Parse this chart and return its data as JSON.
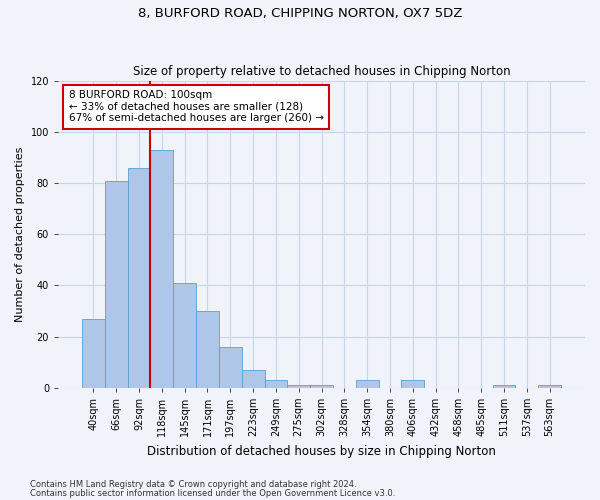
{
  "title": "8, BURFORD ROAD, CHIPPING NORTON, OX7 5DZ",
  "subtitle": "Size of property relative to detached houses in Chipping Norton",
  "xlabel": "Distribution of detached houses by size in Chipping Norton",
  "ylabel": "Number of detached properties",
  "categories": [
    "40sqm",
    "66sqm",
    "92sqm",
    "118sqm",
    "145sqm",
    "171sqm",
    "197sqm",
    "223sqm",
    "249sqm",
    "275sqm",
    "302sqm",
    "328sqm",
    "354sqm",
    "380sqm",
    "406sqm",
    "432sqm",
    "458sqm",
    "485sqm",
    "511sqm",
    "537sqm",
    "563sqm"
  ],
  "values": [
    27,
    81,
    86,
    93,
    41,
    30,
    16,
    7,
    3,
    1,
    1,
    0,
    3,
    0,
    3,
    0,
    0,
    0,
    1,
    0,
    1
  ],
  "bar_color": "#aec6e8",
  "bar_edge_color": "#5a9fd4",
  "vline_x_index": 2.5,
  "vline_color": "#cc0000",
  "ylim": [
    0,
    120
  ],
  "yticks": [
    0,
    20,
    40,
    60,
    80,
    100,
    120
  ],
  "annotation_text": "8 BURFORD ROAD: 100sqm\n← 33% of detached houses are smaller (128)\n67% of semi-detached houses are larger (260) →",
  "annotation_box_color": "#ffffff",
  "annotation_box_edge": "#cc0000",
  "footer1": "Contains HM Land Registry data © Crown copyright and database right 2024.",
  "footer2": "Contains public sector information licensed under the Open Government Licence v3.0.",
  "background_color": "#f0f4fa",
  "grid_color": "#c8d4e8"
}
